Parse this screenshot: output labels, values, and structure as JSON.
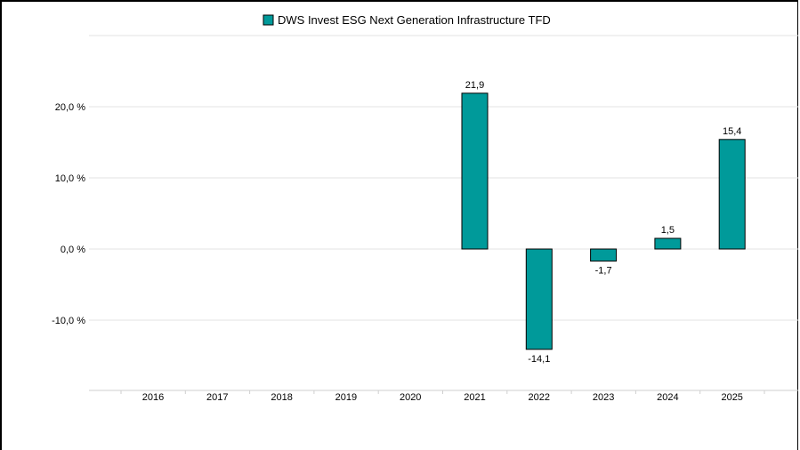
{
  "chart_data": {
    "type": "bar",
    "categories": [
      "2016",
      "2017",
      "2018",
      "2019",
      "2020",
      "2021",
      "2022",
      "2023",
      "2024",
      "2025"
    ],
    "series": [
      {
        "name": "DWS Invest ESG Next Generation Infrastructure TFD",
        "values": [
          null,
          null,
          null,
          null,
          null,
          21.9,
          -14.1,
          -1.7,
          1.5,
          15.4
        ],
        "labels": [
          "",
          "",
          "",
          "",
          "",
          "21,9",
          "-14,1",
          "-1,7",
          "1,5",
          "15,4"
        ],
        "color": "#009a9a"
      }
    ],
    "yticks": [
      {
        "value": 20,
        "label": "20,0 %"
      },
      {
        "value": 10,
        "label": "10,0 %"
      },
      {
        "value": 0,
        "label": "0,0 %"
      },
      {
        "value": -10,
        "label": "-10,0 %"
      }
    ],
    "ylim": [
      -20,
      30
    ],
    "grid": true,
    "legend": "top-center"
  }
}
